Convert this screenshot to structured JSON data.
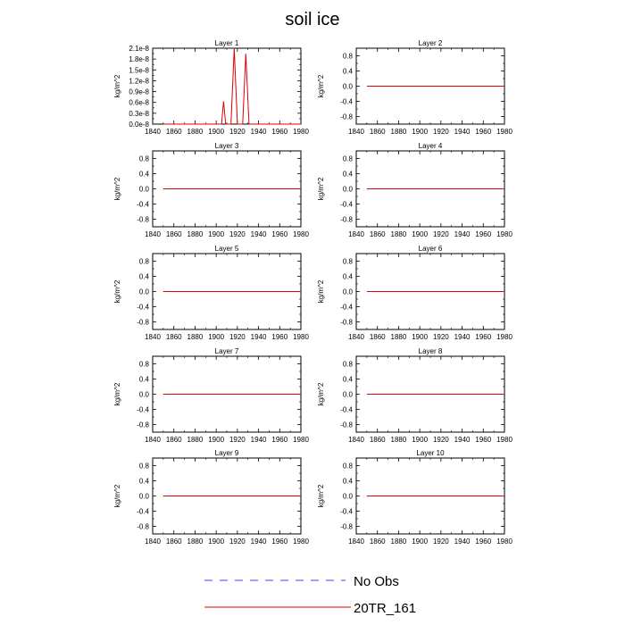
{
  "title": "soil ice",
  "legend": [
    {
      "label": "No Obs",
      "color": "#4040ff",
      "dash": "dashed"
    },
    {
      "label": "20TR_161",
      "color": "#e00000",
      "dash": "solid"
    }
  ],
  "chart_data": [
    {
      "type": "line",
      "title": "Layer 1",
      "ylabel": "kg/m^2",
      "xlim": [
        1840,
        1980
      ],
      "xticks": [
        1840,
        1860,
        1880,
        1900,
        1920,
        1940,
        1960,
        1980
      ],
      "ylim": [
        0,
        2.1e-08
      ],
      "yticks": [
        0,
        3e-09,
        6e-09,
        9e-09,
        1.2e-08,
        1.5e-08,
        1.8e-08,
        2.1e-08
      ],
      "ytick_labels": [
        "0.0e-8",
        "0.3e-8",
        "0.6e-8",
        "0.9e-8",
        "1.2e-8",
        "1.5e-8",
        "1.8e-8",
        "2.1e-8"
      ],
      "series": [
        {
          "name": "20TR_161",
          "x": [
            1850,
            1905,
            1907,
            1909,
            1914,
            1917,
            1920,
            1925,
            1928,
            1931,
            1980
          ],
          "y": [
            0,
            0,
            6.3e-09,
            0,
            0,
            2.1e-08,
            0,
            0,
            1.95e-08,
            0,
            0
          ]
        }
      ]
    },
    {
      "type": "line",
      "title": "Layer 2",
      "ylabel": "kg/m^2",
      "xlim": [
        1840,
        1980
      ],
      "xticks": [
        1840,
        1860,
        1880,
        1900,
        1920,
        1940,
        1960,
        1980
      ],
      "ylim": [
        -1,
        1
      ],
      "yticks": [
        -0.8,
        -0.4,
        0.0,
        0.4,
        0.8
      ],
      "ytick_labels": [
        "-0.8",
        "-0.4",
        "0.0",
        "0.4",
        "0.8"
      ],
      "series": [
        {
          "name": "20TR_161",
          "x": [
            1850,
            1980
          ],
          "y": [
            0,
            0
          ]
        }
      ]
    },
    {
      "type": "line",
      "title": "Layer 3",
      "ylabel": "kg/m^2",
      "xlim": [
        1840,
        1980
      ],
      "xticks": [
        1840,
        1860,
        1880,
        1900,
        1920,
        1940,
        1960,
        1980
      ],
      "ylim": [
        -1,
        1
      ],
      "yticks": [
        -0.8,
        -0.4,
        0.0,
        0.4,
        0.8
      ],
      "ytick_labels": [
        "-0.8",
        "-0.4",
        "0.0",
        "0.4",
        "0.8"
      ],
      "series": [
        {
          "name": "20TR_161",
          "x": [
            1850,
            1980
          ],
          "y": [
            0,
            0
          ]
        }
      ]
    },
    {
      "type": "line",
      "title": "Layer 4",
      "ylabel": "kg/m^2",
      "xlim": [
        1840,
        1980
      ],
      "xticks": [
        1840,
        1860,
        1880,
        1900,
        1920,
        1940,
        1960,
        1980
      ],
      "ylim": [
        -1,
        1
      ],
      "yticks": [
        -0.8,
        -0.4,
        0.0,
        0.4,
        0.8
      ],
      "ytick_labels": [
        "-0.8",
        "-0.4",
        "0.0",
        "0.4",
        "0.8"
      ],
      "series": [
        {
          "name": "20TR_161",
          "x": [
            1850,
            1980
          ],
          "y": [
            0,
            0
          ]
        }
      ]
    },
    {
      "type": "line",
      "title": "Layer 5",
      "ylabel": "kg/m^2",
      "xlim": [
        1840,
        1980
      ],
      "xticks": [
        1840,
        1860,
        1880,
        1900,
        1920,
        1940,
        1960,
        1980
      ],
      "ylim": [
        -1,
        1
      ],
      "yticks": [
        -0.8,
        -0.4,
        0.0,
        0.4,
        0.8
      ],
      "ytick_labels": [
        "-0.8",
        "-0.4",
        "0.0",
        "0.4",
        "0.8"
      ],
      "series": [
        {
          "name": "20TR_161",
          "x": [
            1850,
            1980
          ],
          "y": [
            0,
            0
          ]
        }
      ]
    },
    {
      "type": "line",
      "title": "Layer 6",
      "ylabel": "kg/m^2",
      "xlim": [
        1840,
        1980
      ],
      "xticks": [
        1840,
        1860,
        1880,
        1900,
        1920,
        1940,
        1960,
        1980
      ],
      "ylim": [
        -1,
        1
      ],
      "yticks": [
        -0.8,
        -0.4,
        0.0,
        0.4,
        0.8
      ],
      "ytick_labels": [
        "-0.8",
        "-0.4",
        "0.0",
        "0.4",
        "0.8"
      ],
      "series": [
        {
          "name": "20TR_161",
          "x": [
            1850,
            1980
          ],
          "y": [
            0,
            0
          ]
        }
      ]
    },
    {
      "type": "line",
      "title": "Layer 7",
      "ylabel": "kg/m^2",
      "xlim": [
        1840,
        1980
      ],
      "xticks": [
        1840,
        1860,
        1880,
        1900,
        1920,
        1940,
        1960,
        1980
      ],
      "ylim": [
        -1,
        1
      ],
      "yticks": [
        -0.8,
        -0.4,
        0.0,
        0.4,
        0.8
      ],
      "ytick_labels": [
        "-0.8",
        "-0.4",
        "0.0",
        "0.4",
        "0.8"
      ],
      "series": [
        {
          "name": "20TR_161",
          "x": [
            1850,
            1980
          ],
          "y": [
            0,
            0
          ]
        }
      ]
    },
    {
      "type": "line",
      "title": "Layer 8",
      "ylabel": "kg/m^2",
      "xlim": [
        1840,
        1980
      ],
      "xticks": [
        1840,
        1860,
        1880,
        1900,
        1920,
        1940,
        1960,
        1980
      ],
      "ylim": [
        -1,
        1
      ],
      "yticks": [
        -0.8,
        -0.4,
        0.0,
        0.4,
        0.8
      ],
      "ytick_labels": [
        "-0.8",
        "-0.4",
        "0.0",
        "0.4",
        "0.8"
      ],
      "series": [
        {
          "name": "20TR_161",
          "x": [
            1850,
            1980
          ],
          "y": [
            0,
            0
          ]
        }
      ]
    },
    {
      "type": "line",
      "title": "Layer 9",
      "ylabel": "kg/m^2",
      "xlim": [
        1840,
        1980
      ],
      "xticks": [
        1840,
        1860,
        1880,
        1900,
        1920,
        1940,
        1960,
        1980
      ],
      "ylim": [
        -1,
        1
      ],
      "yticks": [
        -0.8,
        -0.4,
        0.0,
        0.4,
        0.8
      ],
      "ytick_labels": [
        "-0.8",
        "-0.4",
        "0.0",
        "0.4",
        "0.8"
      ],
      "series": [
        {
          "name": "20TR_161",
          "x": [
            1850,
            1980
          ],
          "y": [
            0,
            0
          ]
        }
      ]
    },
    {
      "type": "line",
      "title": "Layer 10",
      "ylabel": "kg/m^2",
      "xlim": [
        1840,
        1980
      ],
      "xticks": [
        1840,
        1860,
        1880,
        1900,
        1920,
        1940,
        1960,
        1980
      ],
      "ylim": [
        -1,
        1
      ],
      "yticks": [
        -0.8,
        -0.4,
        0.0,
        0.4,
        0.8
      ],
      "ytick_labels": [
        "-0.8",
        "-0.4",
        "0.0",
        "0.4",
        "0.8"
      ],
      "series": [
        {
          "name": "20TR_161",
          "x": [
            1850,
            1980
          ],
          "y": [
            0,
            0
          ]
        }
      ]
    }
  ]
}
